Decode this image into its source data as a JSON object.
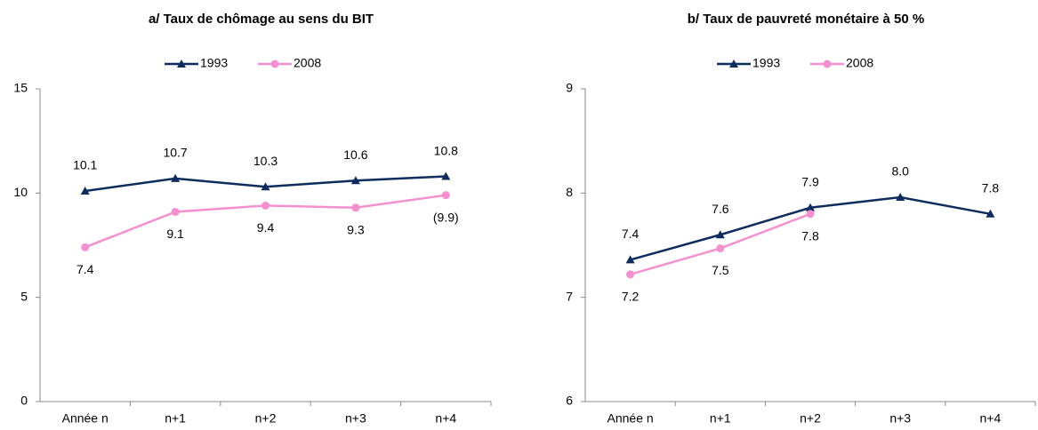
{
  "chart_data": [
    {
      "type": "line",
      "title": "a/ Taux de chômage au sens du BIT",
      "categories": [
        "Année n",
        "n+1",
        "n+2",
        "n+3",
        "n+4"
      ],
      "series": [
        {
          "name": "1993",
          "color": "#0d2d5e",
          "marker": "triangle",
          "values": [
            10.1,
            10.7,
            10.3,
            10.6,
            10.8
          ]
        },
        {
          "name": "2008",
          "color": "#f590d0",
          "marker": "circle",
          "values": [
            7.4,
            9.1,
            9.4,
            9.3,
            9.9
          ],
          "value_labels": [
            "7.4",
            "9.1",
            "9.4",
            "9.3",
            "(9.9)"
          ]
        }
      ],
      "ylim": [
        0,
        15
      ],
      "yticks": [
        0,
        5,
        10,
        15
      ],
      "grid": false,
      "legend": "top"
    },
    {
      "type": "line",
      "title": "b/ Taux de pauvreté monétaire à 50 %",
      "categories": [
        "Année n",
        "n+1",
        "n+2",
        "n+3",
        "n+4"
      ],
      "series": [
        {
          "name": "1993",
          "color": "#0d2d5e",
          "marker": "triangle",
          "values": [
            7.36,
            7.6,
            7.86,
            7.96,
            7.8
          ],
          "value_labels": [
            "7.4",
            "7.6",
            "7.9",
            "8.0",
            "7.8"
          ]
        },
        {
          "name": "2008",
          "color": "#f590d0",
          "marker": "circle",
          "values": [
            7.22,
            7.47,
            7.8,
            null,
            null
          ],
          "value_labels": [
            "7.2",
            "7.5",
            "7.8",
            null,
            null
          ]
        }
      ],
      "ylim": [
        6,
        9
      ],
      "yticks": [
        6,
        7,
        8,
        9
      ],
      "grid": false,
      "legend": "top"
    }
  ]
}
